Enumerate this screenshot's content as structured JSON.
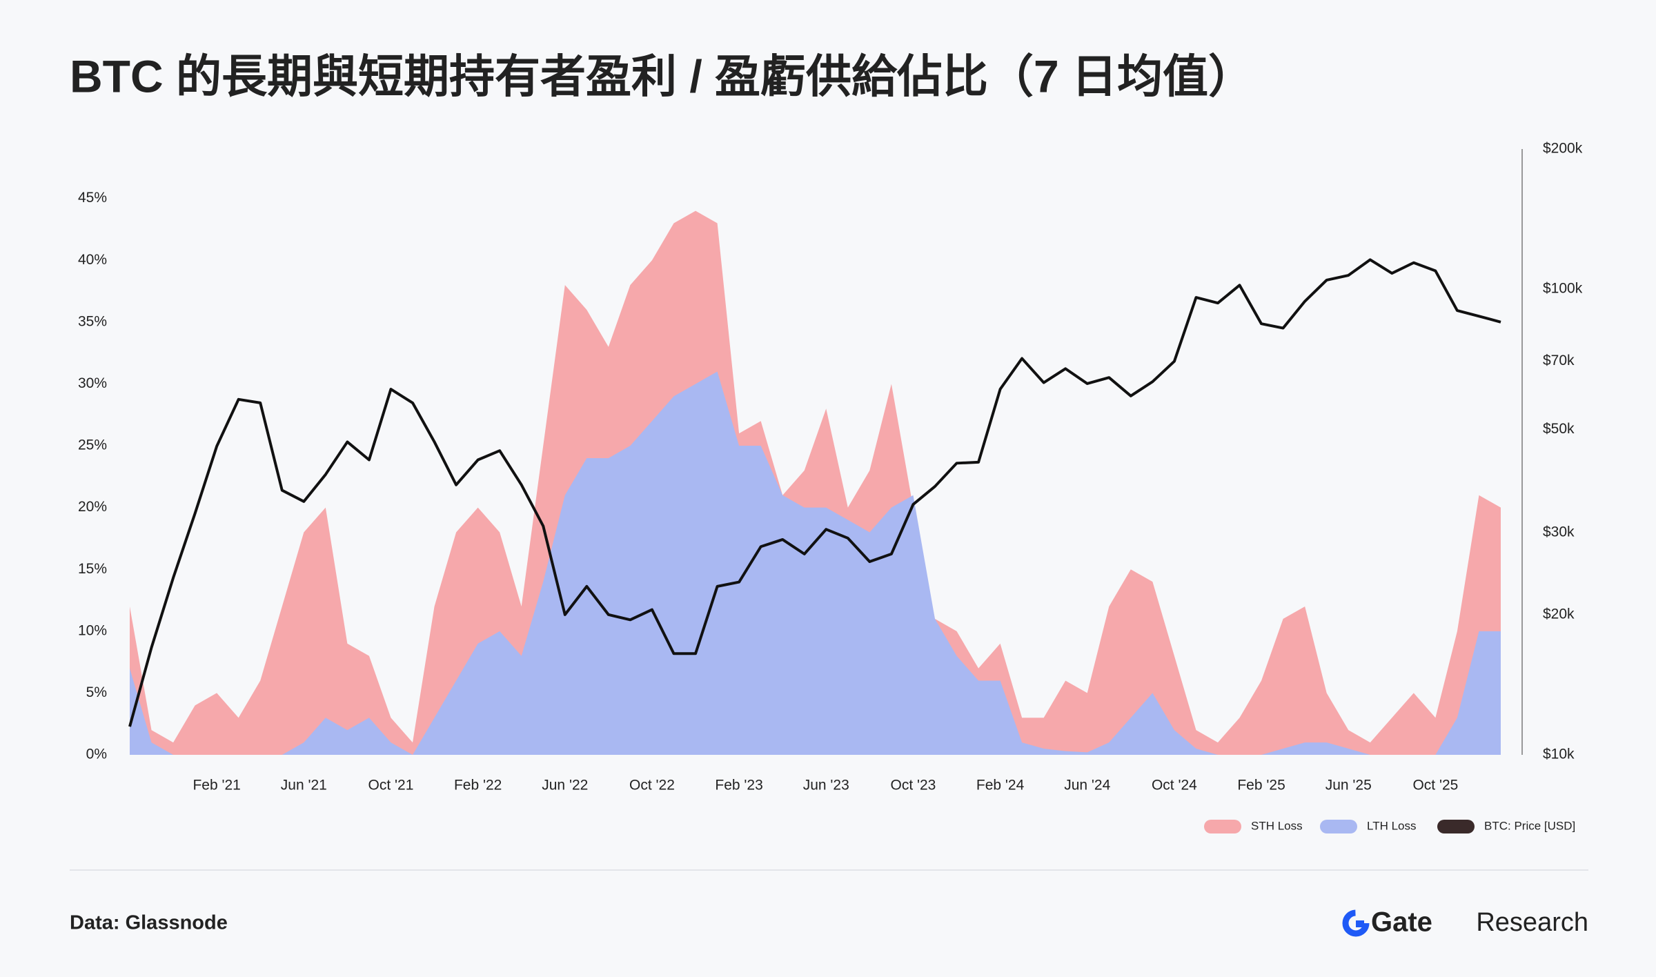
{
  "title": "BTC 的長期與短期持有者盈利 / 盈虧供給佔比（7 日均值）",
  "chart_data": {
    "type": "area",
    "x": [
      "2020-10",
      "2020-11",
      "2020-12",
      "2021-01",
      "2021-02",
      "2021-03",
      "2021-04",
      "2021-05",
      "2021-06",
      "2021-07",
      "2021-08",
      "2021-09",
      "2021-10",
      "2021-11",
      "2021-12",
      "2022-01",
      "2022-02",
      "2022-03",
      "2022-04",
      "2022-05",
      "2022-06",
      "2022-07",
      "2022-08",
      "2022-09",
      "2022-10",
      "2022-11",
      "2022-12",
      "2023-01",
      "2023-02",
      "2023-03",
      "2023-04",
      "2023-05",
      "2023-06",
      "2023-07",
      "2023-08",
      "2023-09",
      "2023-10",
      "2023-11",
      "2023-12",
      "2024-01",
      "2024-02",
      "2024-03",
      "2024-04",
      "2024-05",
      "2024-06",
      "2024-07",
      "2024-08",
      "2024-09",
      "2024-10",
      "2024-11",
      "2024-12",
      "2025-01",
      "2025-02",
      "2025-03",
      "2025-04",
      "2025-05",
      "2025-06",
      "2025-07",
      "2025-08",
      "2025-09",
      "2025-10",
      "2025-11",
      "2025-12",
      "2026-01"
    ],
    "xlim": [
      "2020-10",
      "2026-01"
    ],
    "xticks": [
      {
        "value": "2021-02",
        "label": "Feb '21"
      },
      {
        "value": "2021-06",
        "label": "Jun '21"
      },
      {
        "value": "2021-10",
        "label": "Oct '21"
      },
      {
        "value": "2022-02",
        "label": "Feb '22"
      },
      {
        "value": "2022-06",
        "label": "Jun '22"
      },
      {
        "value": "2022-10",
        "label": "Oct '22"
      },
      {
        "value": "2023-02",
        "label": "Feb '23"
      },
      {
        "value": "2023-06",
        "label": "Jun '23"
      },
      {
        "value": "2023-10",
        "label": "Oct '23"
      },
      {
        "value": "2024-02",
        "label": "Feb '24"
      },
      {
        "value": "2024-06",
        "label": "Jun '24"
      },
      {
        "value": "2024-10",
        "label": "Oct '24"
      },
      {
        "value": "2025-02",
        "label": "Feb '25"
      },
      {
        "value": "2025-06",
        "label": "Jun '25"
      },
      {
        "value": "2025-10",
        "label": "Oct '25"
      }
    ],
    "ylim": [
      0,
      49
    ],
    "yticks": [
      {
        "value": 0,
        "label": "0%"
      },
      {
        "value": 5,
        "label": "5%"
      },
      {
        "value": 10,
        "label": "10%"
      },
      {
        "value": 15,
        "label": "15%"
      },
      {
        "value": 20,
        "label": "20%"
      },
      {
        "value": 25,
        "label": "25%"
      },
      {
        "value": 30,
        "label": "30%"
      },
      {
        "value": 35,
        "label": "35%"
      },
      {
        "value": 40,
        "label": "40%"
      },
      {
        "value": 45,
        "label": "45%"
      }
    ],
    "y2lim": [
      10000,
      200000
    ],
    "y2_log": true,
    "y2ticks": [
      {
        "value": 10000,
        "label": "$10k"
      },
      {
        "value": 20000,
        "label": "$20k"
      },
      {
        "value": 30000,
        "label": "$30k"
      },
      {
        "value": 50000,
        "label": "$50k"
      },
      {
        "value": 70000,
        "label": "$70k"
      },
      {
        "value": 100000,
        "label": "$100k"
      },
      {
        "value": 200000,
        "label": "$200k"
      }
    ],
    "series": [
      {
        "name": "STH Loss",
        "color": "#f6a8ab",
        "values": [
          12,
          2,
          1,
          4,
          5,
          3,
          6,
          12,
          18,
          20,
          9,
          8,
          3,
          1,
          12,
          18,
          20,
          18,
          12,
          25,
          38,
          36,
          33,
          38,
          40,
          43,
          44,
          43,
          26,
          27,
          21,
          23,
          28,
          20,
          23,
          30,
          20,
          11,
          10,
          7,
          9,
          3,
          3,
          6,
          5,
          12,
          15,
          14,
          8,
          2,
          1,
          3,
          6,
          11,
          12,
          5,
          2,
          1,
          3,
          5,
          3,
          10,
          21,
          20
        ]
      },
      {
        "name": "LTH Loss",
        "color": "#a9b8f2",
        "values": [
          7,
          1,
          0,
          0,
          0,
          0,
          0,
          0,
          1,
          3,
          2,
          3,
          1,
          0,
          3,
          6,
          9,
          10,
          8,
          14,
          21,
          24,
          24,
          25,
          27,
          29,
          30,
          31,
          25,
          25,
          21,
          20,
          20,
          19,
          18,
          20,
          21,
          11,
          8,
          6,
          6,
          1,
          0.5,
          0.3,
          0.2,
          1,
          3,
          5,
          2,
          0.5,
          0,
          0,
          0,
          0.5,
          1,
          1,
          0.5,
          0,
          0,
          0,
          0,
          3,
          10,
          10
        ]
      },
      {
        "name": "BTC: Price [USD]",
        "color": "#111111",
        "type": "line",
        "axis": "y2",
        "legend_color": "#3a2a2a",
        "values": [
          11500,
          17000,
          24000,
          33000,
          46000,
          58000,
          57000,
          37000,
          35000,
          40000,
          47000,
          43000,
          61000,
          57000,
          47000,
          38000,
          43000,
          45000,
          38000,
          31000,
          20000,
          23000,
          20000,
          19500,
          20500,
          16500,
          16500,
          23000,
          23500,
          28000,
          29000,
          27000,
          30500,
          29200,
          26000,
          27000,
          34500,
          37700,
          42300,
          42500,
          61000,
          71000,
          63000,
          67500,
          62700,
          64600,
          59000,
          63300,
          70000,
          96000,
          93400,
          102000,
          84300,
          82500,
          94200,
          104600,
          107100,
          115700,
          108200,
          114000,
          109500,
          90000,
          87500,
          85000
        ]
      }
    ]
  },
  "footer": {
    "source": "Data: Glassnode",
    "brand": "Gate",
    "brand_suffix": "Research"
  }
}
